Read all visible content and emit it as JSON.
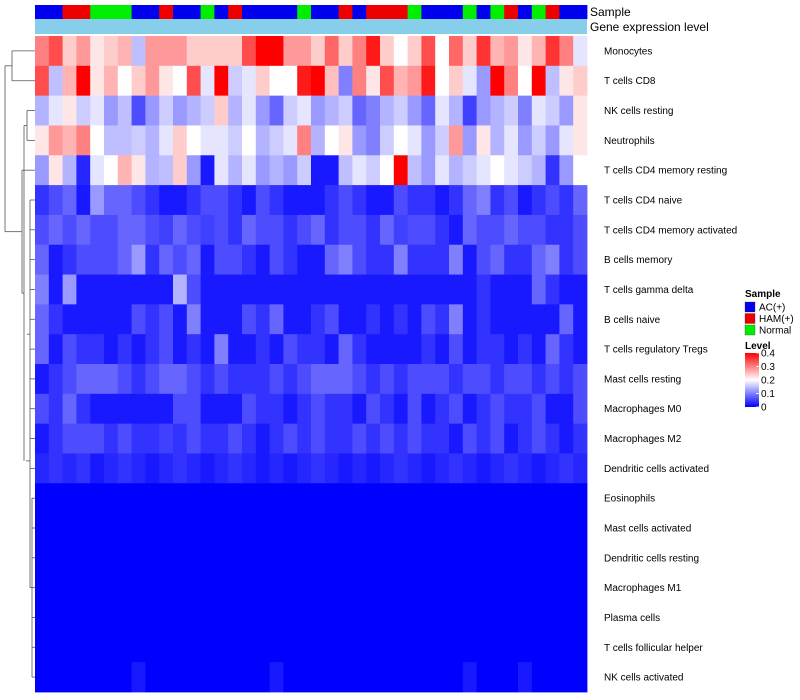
{
  "chart_data": {
    "type": "heatmap",
    "title": "",
    "annotation_rows": [
      "Sample",
      "Gene expression level"
    ],
    "row_labels": [
      "Monocytes",
      "T cells CD8",
      "NK cells resting",
      "Neutrophils",
      "T cells CD4 memory resting",
      "T cells CD4 naive",
      "T cells CD4 memory activated",
      "B cells memory",
      "T cells gamma delta",
      "B cells naive",
      "T cells regulatory  Tregs",
      "Mast cells resting",
      "Macrophages M0",
      "Macrophages M2",
      "Dendritic cells activated",
      "Eosinophils",
      "Mast cells activated",
      "Dendritic cells resting",
      "Macrophages M1",
      "Plasma cells",
      "T cells follicular helper",
      "NK cells activated"
    ],
    "sample_groups": [
      "AC(+)",
      "AC(+)",
      "HAM(+)",
      "HAM(+)",
      "Normal",
      "Normal",
      "Normal",
      "AC(+)",
      "AC(+)",
      "HAM(+)",
      "AC(+)",
      "AC(+)",
      "Normal",
      "AC(+)",
      "HAM(+)",
      "AC(+)",
      "AC(+)",
      "AC(+)",
      "AC(+)",
      "Normal",
      "AC(+)",
      "AC(+)",
      "HAM(+)",
      "AC(+)",
      "HAM(+)",
      "HAM(+)",
      "HAM(+)",
      "Normal",
      "AC(+)",
      "AC(+)",
      "AC(+)",
      "Normal",
      "AC(+)",
      "Normal",
      "HAM(+)",
      "AC(+)",
      "Normal",
      "HAM(+)",
      "AC(+)",
      "AC(+)"
    ],
    "values": [
      [
        0.3,
        0.34,
        0.24,
        0.28,
        0.22,
        0.24,
        0.26,
        0.15,
        0.28,
        0.28,
        0.28,
        0.24,
        0.24,
        0.24,
        0.24,
        0.34,
        0.42,
        0.42,
        0.28,
        0.28,
        0.24,
        0.32,
        0.24,
        0.3,
        0.38,
        0.24,
        0.2,
        0.24,
        0.34,
        0.2,
        0.32,
        0.24,
        0.36,
        0.26,
        0.28,
        0.22,
        0.26,
        0.36,
        0.3,
        0.18
      ],
      [
        0.34,
        0.15,
        0.26,
        0.42,
        0.22,
        0.26,
        0.2,
        0.24,
        0.28,
        0.22,
        0.2,
        0.34,
        0.18,
        0.42,
        0.16,
        0.18,
        0.24,
        0.2,
        0.2,
        0.38,
        0.4,
        0.25,
        0.1,
        0.3,
        0.22,
        0.34,
        0.26,
        0.28,
        0.38,
        0.2,
        0.24,
        0.18,
        0.12,
        0.4,
        0.3,
        0.2,
        0.4,
        0.15,
        0.22,
        0.24
      ],
      [
        0.14,
        0.18,
        0.22,
        0.16,
        0.18,
        0.12,
        0.15,
        0.06,
        0.12,
        0.16,
        0.12,
        0.14,
        0.16,
        0.24,
        0.14,
        0.18,
        0.12,
        0.08,
        0.16,
        0.18,
        0.12,
        0.14,
        0.16,
        0.08,
        0.1,
        0.14,
        0.16,
        0.12,
        0.08,
        0.18,
        0.14,
        0.05,
        0.12,
        0.14,
        0.16,
        0.1,
        0.18,
        0.16,
        0.12,
        0.22
      ],
      [
        0.22,
        0.28,
        0.26,
        0.3,
        0.2,
        0.15,
        0.15,
        0.16,
        0.14,
        0.18,
        0.24,
        0.2,
        0.18,
        0.18,
        0.16,
        0.2,
        0.14,
        0.16,
        0.18,
        0.3,
        0.14,
        0.2,
        0.22,
        0.12,
        0.1,
        0.16,
        0.2,
        0.18,
        0.12,
        0.16,
        0.28,
        0.12,
        0.22,
        0.14,
        0.18,
        0.12,
        0.16,
        0.12,
        0.18,
        0.22
      ],
      [
        0.12,
        0.22,
        0.14,
        0.03,
        0.18,
        0.2,
        0.26,
        0.22,
        0.14,
        0.15,
        0.24,
        0.12,
        0.02,
        0.18,
        0.14,
        0.18,
        0.12,
        0.14,
        0.12,
        0.16,
        0.02,
        0.02,
        0.15,
        0.18,
        0.16,
        0.2,
        0.42,
        0.15,
        0.12,
        0.18,
        0.14,
        0.16,
        0.18,
        0.2,
        0.18,
        0.16,
        0.14,
        0.04,
        0.12,
        0.2
      ],
      [
        0.04,
        0.06,
        0.08,
        0.02,
        0.12,
        0.08,
        0.08,
        0.06,
        0.04,
        0.02,
        0.02,
        0.04,
        0.06,
        0.06,
        0.04,
        0.02,
        0.06,
        0.04,
        0.02,
        0.02,
        0.02,
        0.04,
        0.06,
        0.04,
        0.02,
        0.02,
        0.06,
        0.04,
        0.04,
        0.02,
        0.04,
        0.08,
        0.1,
        0.04,
        0.06,
        0.02,
        0.04,
        0.06,
        0.04,
        0.08
      ],
      [
        0.06,
        0.08,
        0.06,
        0.08,
        0.06,
        0.06,
        0.08,
        0.08,
        0.06,
        0.05,
        0.08,
        0.06,
        0.05,
        0.06,
        0.04,
        0.08,
        0.06,
        0.06,
        0.04,
        0.06,
        0.08,
        0.04,
        0.06,
        0.06,
        0.04,
        0.08,
        0.05,
        0.06,
        0.06,
        0.04,
        0.02,
        0.08,
        0.06,
        0.06,
        0.08,
        0.06,
        0.06,
        0.04,
        0.04,
        0.06
      ],
      [
        0.08,
        0.02,
        0.04,
        0.06,
        0.06,
        0.06,
        0.08,
        0.12,
        0.04,
        0.08,
        0.06,
        0.08,
        0.02,
        0.06,
        0.06,
        0.04,
        0.02,
        0.06,
        0.04,
        0.02,
        0.02,
        0.08,
        0.1,
        0.06,
        0.04,
        0.04,
        0.1,
        0.04,
        0.04,
        0.04,
        0.1,
        0.02,
        0.06,
        0.08,
        0.04,
        0.04,
        0.08,
        0.1,
        0.04,
        0.06
      ],
      [
        0.1,
        0.02,
        0.12,
        0.02,
        0.02,
        0.02,
        0.02,
        0.02,
        0.02,
        0.02,
        0.14,
        0.06,
        0.02,
        0.02,
        0.02,
        0.02,
        0.02,
        0.02,
        0.02,
        0.02,
        0.02,
        0.02,
        0.02,
        0.02,
        0.02,
        0.02,
        0.02,
        0.02,
        0.02,
        0.02,
        0.02,
        0.02,
        0.04,
        0.02,
        0.02,
        0.02,
        0.08,
        0.04,
        0.02,
        0.02
      ],
      [
        0.08,
        0.04,
        0.02,
        0.02,
        0.02,
        0.02,
        0.02,
        0.06,
        0.04,
        0.06,
        0.02,
        0.1,
        0.02,
        0.02,
        0.02,
        0.06,
        0.04,
        0.08,
        0.02,
        0.02,
        0.04,
        0.06,
        0.02,
        0.02,
        0.04,
        0.02,
        0.04,
        0.02,
        0.06,
        0.04,
        0.1,
        0.02,
        0.04,
        0.02,
        0.02,
        0.02,
        0.02,
        0.02,
        0.08,
        0.02
      ],
      [
        0.08,
        0.02,
        0.06,
        0.04,
        0.04,
        0.02,
        0.04,
        0.02,
        0.04,
        0.06,
        0.02,
        0.04,
        0.02,
        0.1,
        0.02,
        0.02,
        0.04,
        0.02,
        0.06,
        0.04,
        0.04,
        0.02,
        0.08,
        0.04,
        0.02,
        0.02,
        0.02,
        0.02,
        0.04,
        0.02,
        0.06,
        0.02,
        0.04,
        0.04,
        0.02,
        0.04,
        0.02,
        0.08,
        0.04,
        0.02
      ],
      [
        0.02,
        0.04,
        0.06,
        0.08,
        0.08,
        0.08,
        0.06,
        0.04,
        0.06,
        0.08,
        0.08,
        0.06,
        0.04,
        0.06,
        0.04,
        0.04,
        0.04,
        0.06,
        0.04,
        0.06,
        0.08,
        0.08,
        0.08,
        0.06,
        0.04,
        0.06,
        0.04,
        0.06,
        0.06,
        0.06,
        0.04,
        0.06,
        0.06,
        0.04,
        0.06,
        0.06,
        0.04,
        0.06,
        0.04,
        0.06
      ],
      [
        0.06,
        0.04,
        0.08,
        0.04,
        0.02,
        0.02,
        0.02,
        0.02,
        0.02,
        0.02,
        0.06,
        0.06,
        0.02,
        0.02,
        0.02,
        0.06,
        0.04,
        0.04,
        0.02,
        0.04,
        0.06,
        0.04,
        0.04,
        0.02,
        0.06,
        0.04,
        0.02,
        0.06,
        0.02,
        0.04,
        0.06,
        0.02,
        0.04,
        0.06,
        0.04,
        0.04,
        0.06,
        0.02,
        0.02,
        0.06
      ],
      [
        0.02,
        0.04,
        0.06,
        0.06,
        0.06,
        0.04,
        0.06,
        0.04,
        0.04,
        0.05,
        0.04,
        0.06,
        0.04,
        0.04,
        0.06,
        0.04,
        0.02,
        0.04,
        0.06,
        0.04,
        0.06,
        0.04,
        0.04,
        0.06,
        0.04,
        0.06,
        0.04,
        0.06,
        0.04,
        0.04,
        0.02,
        0.06,
        0.04,
        0.06,
        0.02,
        0.04,
        0.06,
        0.04,
        0.02,
        0.04
      ],
      [
        0.03,
        0.04,
        0.03,
        0.04,
        0.02,
        0.03,
        0.04,
        0.03,
        0.02,
        0.03,
        0.04,
        0.03,
        0.02,
        0.03,
        0.04,
        0.03,
        0.02,
        0.03,
        0.02,
        0.03,
        0.04,
        0.03,
        0.02,
        0.03,
        0.02,
        0.03,
        0.04,
        0.03,
        0.02,
        0.03,
        0.04,
        0.03,
        0.02,
        0.03,
        0.04,
        0.03,
        0.02,
        0.03,
        0.04,
        0.03
      ],
      [
        0.0,
        0.0,
        0.0,
        0.0,
        0.0,
        0.0,
        0.0,
        0.0,
        0.0,
        0.0,
        0.0,
        0.0,
        0.0,
        0.0,
        0.0,
        0.0,
        0.0,
        0.0,
        0.0,
        0.0,
        0.0,
        0.0,
        0.0,
        0.0,
        0.0,
        0.0,
        0.0,
        0.0,
        0.0,
        0.0,
        0.0,
        0.0,
        0.0,
        0.0,
        0.0,
        0.0,
        0.0,
        0.0,
        0.0,
        0.0
      ],
      [
        0.0,
        0.0,
        0.0,
        0.0,
        0.0,
        0.0,
        0.0,
        0.0,
        0.0,
        0.0,
        0.0,
        0.0,
        0.0,
        0.0,
        0.0,
        0.0,
        0.0,
        0.0,
        0.0,
        0.0,
        0.0,
        0.0,
        0.0,
        0.0,
        0.0,
        0.0,
        0.0,
        0.0,
        0.0,
        0.0,
        0.0,
        0.0,
        0.0,
        0.0,
        0.0,
        0.0,
        0.0,
        0.0,
        0.0,
        0.0
      ],
      [
        0.0,
        0.0,
        0.0,
        0.0,
        0.0,
        0.0,
        0.0,
        0.0,
        0.0,
        0.0,
        0.0,
        0.0,
        0.0,
        0.0,
        0.0,
        0.0,
        0.0,
        0.0,
        0.0,
        0.0,
        0.0,
        0.0,
        0.0,
        0.0,
        0.0,
        0.0,
        0.0,
        0.0,
        0.0,
        0.0,
        0.0,
        0.0,
        0.0,
        0.0,
        0.0,
        0.0,
        0.0,
        0.0,
        0.0,
        0.0
      ],
      [
        0.0,
        0.0,
        0.0,
        0.0,
        0.0,
        0.0,
        0.0,
        0.0,
        0.0,
        0.0,
        0.0,
        0.0,
        0.0,
        0.0,
        0.0,
        0.0,
        0.0,
        0.0,
        0.0,
        0.0,
        0.0,
        0.0,
        0.0,
        0.0,
        0.0,
        0.0,
        0.0,
        0.0,
        0.0,
        0.0,
        0.0,
        0.0,
        0.0,
        0.0,
        0.0,
        0.0,
        0.0,
        0.0,
        0.0,
        0.0
      ],
      [
        0.0,
        0.0,
        0.0,
        0.0,
        0.0,
        0.0,
        0.0,
        0.0,
        0.0,
        0.0,
        0.0,
        0.0,
        0.0,
        0.0,
        0.0,
        0.0,
        0.0,
        0.0,
        0.0,
        0.0,
        0.0,
        0.0,
        0.0,
        0.0,
        0.0,
        0.0,
        0.0,
        0.0,
        0.0,
        0.0,
        0.0,
        0.0,
        0.0,
        0.0,
        0.0,
        0.0,
        0.0,
        0.0,
        0.0,
        0.0
      ],
      [
        0.0,
        0.0,
        0.0,
        0.0,
        0.0,
        0.0,
        0.0,
        0.0,
        0.0,
        0.0,
        0.0,
        0.0,
        0.0,
        0.0,
        0.0,
        0.0,
        0.0,
        0.0,
        0.0,
        0.0,
        0.0,
        0.0,
        0.0,
        0.0,
        0.0,
        0.0,
        0.0,
        0.0,
        0.0,
        0.0,
        0.0,
        0.0,
        0.0,
        0.0,
        0.0,
        0.0,
        0.0,
        0.0,
        0.0,
        0.0
      ],
      [
        0.0,
        0.0,
        0.0,
        0.0,
        0.0,
        0.0,
        0.0,
        0.02,
        0.0,
        0.0,
        0.0,
        0.0,
        0.0,
        0.0,
        0.0,
        0.0,
        0.0,
        0.02,
        0.0,
        0.0,
        0.0,
        0.0,
        0.0,
        0.0,
        0.0,
        0.0,
        0.0,
        0.0,
        0.0,
        0.0,
        0.0,
        0.02,
        0.0,
        0.0,
        0.0,
        0.02,
        0.0,
        0.0,
        0.0,
        0.0
      ]
    ],
    "value_range": [
      0,
      0.4
    ],
    "legend": {
      "sample_title": "Sample",
      "groups": [
        {
          "name": "AC(+)",
          "color": "#0000ee"
        },
        {
          "name": "HAM(+)",
          "color": "#ee0000"
        },
        {
          "name": "Normal",
          "color": "#00ee00"
        }
      ],
      "level_title": "Level",
      "level_ticks": [
        "0.4",
        "0.3",
        "0.2",
        "0.1",
        "0"
      ],
      "level_tick_values": [
        0.4,
        0.3,
        0.2,
        0.1,
        0.0
      ]
    },
    "colors": {
      "low": "#0000ff",
      "mid": "#ffffff",
      "high": "#ff0000",
      "expression_bar": "#87ceeb"
    },
    "dendrogram": "rows"
  }
}
